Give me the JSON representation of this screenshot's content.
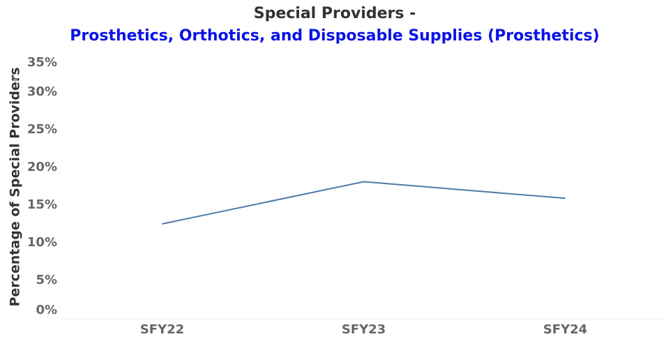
{
  "chart_data": {
    "type": "line",
    "title": "Special Providers -",
    "subtitle": "Prosthetics, Orthotics, and Disposable Supplies (Prosthetics)",
    "y_label": "Percentage of Special Providers",
    "categories": [
      "SFY22",
      "SFY23",
      "SFY24"
    ],
    "series": [
      {
        "name": "Prosthetics",
        "color": "#4e79a7",
        "values": [
          12.5,
          18.1,
          15.9
        ]
      }
    ],
    "ylim": [
      0,
      35
    ],
    "yticks": [
      {
        "value": 0,
        "label": "0%"
      },
      {
        "value": 5,
        "label": "5%"
      },
      {
        "value": 10,
        "label": "10%"
      },
      {
        "value": 15,
        "label": "15%"
      },
      {
        "value": 20,
        "label": "20%"
      },
      {
        "value": 25,
        "label": "25%"
      },
      {
        "value": 30,
        "label": "30%"
      },
      {
        "value": 35,
        "label": "35%"
      }
    ],
    "grid": false
  }
}
